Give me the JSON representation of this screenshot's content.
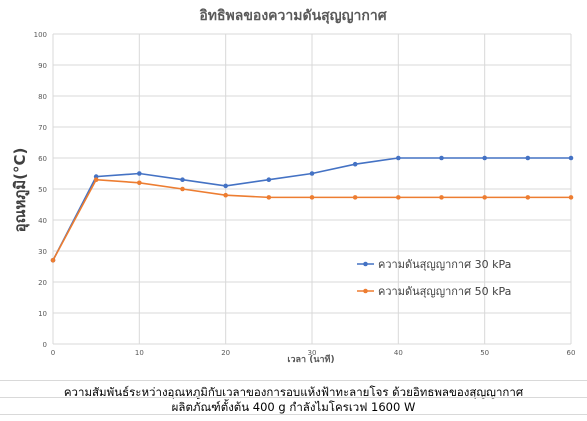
{
  "chart_data": {
    "type": "line",
    "title": "อิทธิพลของความดันสุญญากาศ",
    "xlabel": "เวลา (นาที)",
    "ylabel": "อุณหภูมิ(°C)",
    "x": [
      0,
      5,
      10,
      15,
      20,
      25,
      30,
      35,
      40,
      45,
      50,
      55,
      60
    ],
    "xlim": [
      0,
      60
    ],
    "ylim": [
      0,
      100
    ],
    "xticks": [
      "0",
      "10",
      "20",
      "30",
      "40",
      "50",
      "60"
    ],
    "yticks": [
      "0",
      "10",
      "20",
      "30",
      "40",
      "50",
      "60",
      "70",
      "80",
      "90",
      "100"
    ],
    "grid": true,
    "legend_position": "bottom-right",
    "series": [
      {
        "name": "ความดันสุญญากาศ 30 kPa",
        "color": "#4472c4",
        "values": [
          27,
          54,
          55,
          53,
          51,
          53,
          55,
          58,
          60,
          60,
          60,
          60,
          60
        ]
      },
      {
        "name": "ความดันสุญญากาศ 50 kPa",
        "color": "#ed7d31",
        "values": [
          27,
          53,
          52,
          50,
          48,
          47.3,
          47.3,
          47.3,
          47.3,
          47.3,
          47.3,
          47.3,
          47.3
        ]
      }
    ]
  },
  "caption": {
    "line1": "ความสัมพันธ์ระหว่างอุณหภูมิกับเวลาของการอบแห้งฟ้าทะลายโจร ด้วยอิทธพลของสุญญากาศ",
    "line2": "ผลิตภัณฑ์ตั้งต้น 400 g กำลังไมโครเวฟ 1600 W"
  }
}
